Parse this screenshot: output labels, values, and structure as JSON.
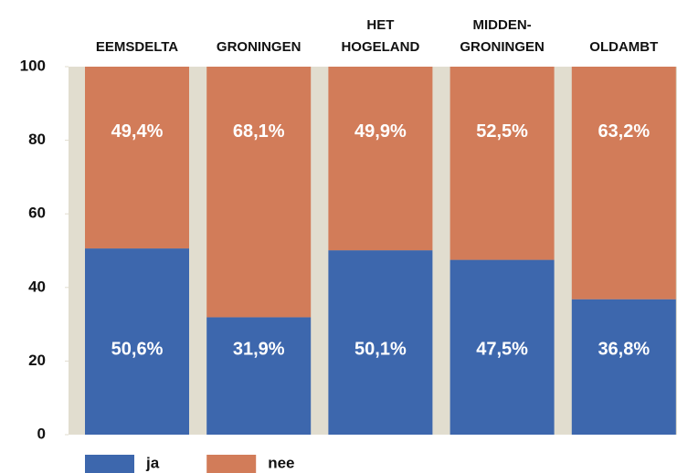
{
  "chart_data": {
    "type": "stacked_bar",
    "categories": [
      "EEMSDELTA",
      "GRONINGEN",
      "HET\nHOGELAND",
      "MIDDEN-\nGRONINGEN",
      "OLDAMBT"
    ],
    "series": [
      {
        "name": "ja",
        "color": "#3d67ad",
        "values": [
          50.6,
          31.9,
          50.1,
          47.5,
          36.8
        ],
        "value_labels": [
          "50,6%",
          "31,9%",
          "50,1%",
          "47,5%",
          "36,8%"
        ]
      },
      {
        "name": "nee",
        "color": "#d27c59",
        "values": [
          49.4,
          68.1,
          49.9,
          52.5,
          63.2
        ],
        "value_labels": [
          "49,4%",
          "68,1%",
          "49,9%",
          "52,5%",
          "63,2%"
        ]
      }
    ],
    "ylim": [
      0,
      100
    ],
    "yticks": [
      0,
      20,
      40,
      60,
      80,
      100
    ],
    "background": "#e1ddcf",
    "legend": "bottom-left"
  }
}
